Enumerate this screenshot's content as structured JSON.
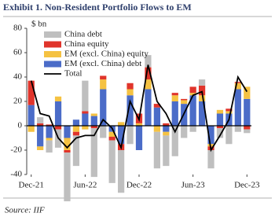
{
  "chart_data": {
    "type": "bar",
    "title": "Exhibit 1. Non-Resident Portfolio Flows to EM",
    "y_label": "$ bn",
    "source": "Source: IIF",
    "categories": [
      "Dec-21",
      null,
      null,
      null,
      null,
      null,
      "Jun-22",
      null,
      null,
      null,
      null,
      null,
      "Dec-22",
      null,
      null,
      null,
      null,
      null,
      "Jun-23",
      null,
      null,
      null,
      null,
      null,
      "Dec-23"
    ],
    "series": [
      {
        "name": "China debt",
        "color": "#bfbfbf",
        "values": [
          0,
          5,
          -10,
          -15,
          -40,
          -25,
          25,
          -40,
          -10,
          -35,
          -35,
          -15,
          0,
          10,
          -30,
          -25,
          -25,
          -10,
          -5,
          5,
          -15,
          -8,
          -15,
          -5,
          -3
        ]
      },
      {
        "name": "China equity",
        "color": "#e0342b",
        "values": [
          20,
          2,
          1,
          -3,
          -2,
          -3,
          2,
          -2,
          3,
          -3,
          -5,
          5,
          8,
          10,
          3,
          2,
          2,
          1,
          5,
          8,
          -3,
          -2,
          2,
          1,
          -3
        ]
      },
      {
        "name": "EM (excl. China) equity",
        "color": "#f5c242",
        "values": [
          -5,
          -3,
          -2,
          4,
          -10,
          -5,
          -3,
          2,
          8,
          -4,
          3,
          5,
          2,
          8,
          -5,
          -3,
          5,
          3,
          2,
          5,
          -2,
          3,
          2,
          5,
          10
        ]
      },
      {
        "name": "EM (excl. China) debt",
        "color": "#4b6cc8",
        "values": [
          17,
          -17,
          -10,
          20,
          -10,
          5,
          10,
          8,
          30,
          -5,
          -15,
          25,
          -20,
          30,
          15,
          -5,
          20,
          18,
          25,
          20,
          -15,
          10,
          10,
          30,
          22
        ]
      },
      {
        "name": "Total",
        "type": "line",
        "color": "#000000",
        "values": [
          37,
          10,
          8,
          -10,
          -18,
          -10,
          -8,
          -8,
          5,
          -2,
          -18,
          20,
          5,
          50,
          20,
          10,
          -5,
          10,
          25,
          28,
          -20,
          -8,
          5,
          40,
          28
        ]
      }
    ],
    "ylim": [
      -40,
      80
    ],
    "yticks": [
      -40,
      -20,
      0,
      20,
      40,
      60,
      80
    ],
    "grid": false,
    "legend": "upper left"
  }
}
